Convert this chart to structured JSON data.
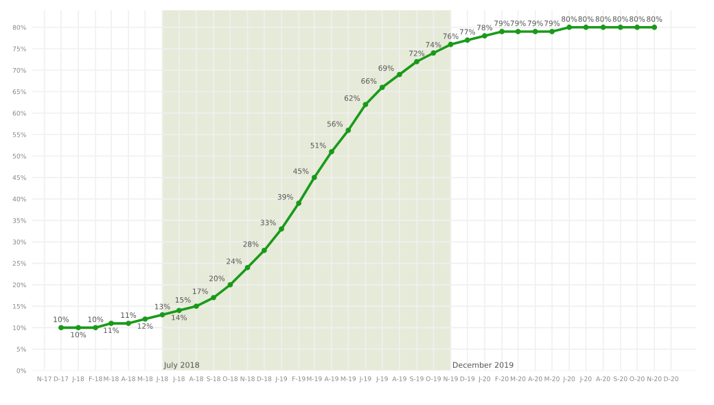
{
  "chart_data": {
    "type": "line",
    "x": [
      "2017-12",
      "2018-01",
      "2018-02",
      "2018-03",
      "2018-04",
      "2018-05",
      "2018-06",
      "2018-07",
      "2018-08",
      "2018-09",
      "2018-10",
      "2018-11",
      "2018-12",
      "2019-01",
      "2019-02",
      "2019-03",
      "2019-04",
      "2019-05",
      "2019-06",
      "2019-07",
      "2019-08",
      "2019-09",
      "2019-10",
      "2019-11",
      "2019-12",
      "2020-01",
      "2020-02",
      "2020-03",
      "2020-04",
      "2020-05",
      "2020-06",
      "2020-07",
      "2020-08",
      "2020-09",
      "2020-10",
      "2020-11"
    ],
    "series": [
      {
        "color": "#1a9a1a",
        "values": [
          10,
          10,
          10,
          11,
          11,
          12,
          13,
          14,
          15,
          17,
          20,
          24,
          28,
          33,
          39,
          45,
          51,
          56,
          62,
          66,
          69,
          72,
          74,
          76,
          77,
          78,
          79,
          79,
          79,
          79,
          80,
          80,
          80,
          80,
          80,
          80
        ]
      }
    ],
    "value_labels": [
      "10%",
      "10%",
      "10%",
      "11%",
      "11%",
      "12%",
      "13%",
      "14%",
      "15%",
      "17%",
      "20%",
      "24%",
      "28%",
      "33%",
      "39%",
      "45%",
      "51%",
      "56%",
      "62%",
      "66%",
      "69%",
      "72%",
      "74%",
      "76%",
      "77%",
      "78%",
      "79%",
      "79%",
      "79%",
      "79%",
      "80%",
      "80%",
      "80%",
      "80%",
      "80%",
      "80%"
    ],
    "marker": "circle",
    "grid": true,
    "xlim": [
      "2017-10-10",
      "2021-01-15"
    ],
    "xticks": [
      {
        "value": "2017-11",
        "label": "N-17"
      },
      {
        "value": "2017-12",
        "label": "D-17"
      },
      {
        "value": "2018-01",
        "label": "J-18"
      },
      {
        "value": "2018-02",
        "label": "F-18"
      },
      {
        "value": "2018-03",
        "label": "M-18"
      },
      {
        "value": "2018-04",
        "label": "A-18"
      },
      {
        "value": "2018-05",
        "label": "M-18"
      },
      {
        "value": "2018-06",
        "label": "J-18"
      },
      {
        "value": "2018-07",
        "label": "J-18"
      },
      {
        "value": "2018-08",
        "label": "A-18"
      },
      {
        "value": "2018-09",
        "label": "S-18"
      },
      {
        "value": "2018-10",
        "label": "O-18"
      },
      {
        "value": "2018-11",
        "label": "N-18"
      },
      {
        "value": "2018-12",
        "label": "D-18"
      },
      {
        "value": "2019-01",
        "label": "J-19"
      },
      {
        "value": "2019-02",
        "label": "F-19"
      },
      {
        "value": "2019-03",
        "label": "M-19"
      },
      {
        "value": "2019-04",
        "label": "A-19"
      },
      {
        "value": "2019-05",
        "label": "M-19"
      },
      {
        "value": "2019-06",
        "label": "J-19"
      },
      {
        "value": "2019-07",
        "label": "J-19"
      },
      {
        "value": "2019-08",
        "label": "A-19"
      },
      {
        "value": "2019-09",
        "label": "S-19"
      },
      {
        "value": "2019-10",
        "label": "O-19"
      },
      {
        "value": "2019-11",
        "label": "N-19"
      },
      {
        "value": "2019-12",
        "label": "D-19"
      },
      {
        "value": "2020-01",
        "label": "J-20"
      },
      {
        "value": "2020-02",
        "label": "F-20"
      },
      {
        "value": "2020-03",
        "label": "M-20"
      },
      {
        "value": "2020-04",
        "label": "A-20"
      },
      {
        "value": "2020-05",
        "label": "M-20"
      },
      {
        "value": "2020-06",
        "label": "J-20"
      },
      {
        "value": "2020-07",
        "label": "J-20"
      },
      {
        "value": "2020-08",
        "label": "A-20"
      },
      {
        "value": "2020-09",
        "label": "S-20"
      },
      {
        "value": "2020-10",
        "label": "O-20"
      },
      {
        "value": "2020-11",
        "label": "N-20"
      },
      {
        "value": "2020-12",
        "label": "D-20"
      }
    ],
    "ylim": [
      0,
      84
    ],
    "yticks": [
      {
        "value": 0,
        "label": "0%"
      },
      {
        "value": 5,
        "label": "5%"
      },
      {
        "value": 10,
        "label": "10%"
      },
      {
        "value": 15,
        "label": "15%"
      },
      {
        "value": 20,
        "label": "20%"
      },
      {
        "value": 25,
        "label": "25%"
      },
      {
        "value": 30,
        "label": "30%"
      },
      {
        "value": 35,
        "label": "35%"
      },
      {
        "value": 40,
        "label": "40%"
      },
      {
        "value": 45,
        "label": "45%"
      },
      {
        "value": 50,
        "label": "50%"
      },
      {
        "value": 55,
        "label": "55%"
      },
      {
        "value": 60,
        "label": "60%"
      },
      {
        "value": 65,
        "label": "65%"
      },
      {
        "value": 70,
        "label": "70%"
      },
      {
        "value": 75,
        "label": "75%"
      },
      {
        "value": 80,
        "label": "80%"
      }
    ],
    "bands": [
      {
        "axis": "x",
        "from": "2018-06",
        "to": "2019-11",
        "label": "July 2018",
        "color": "#e6ead8"
      }
    ],
    "annotations": [
      {
        "text": "December 2019",
        "x": "2019-11",
        "y": 0
      }
    ]
  }
}
